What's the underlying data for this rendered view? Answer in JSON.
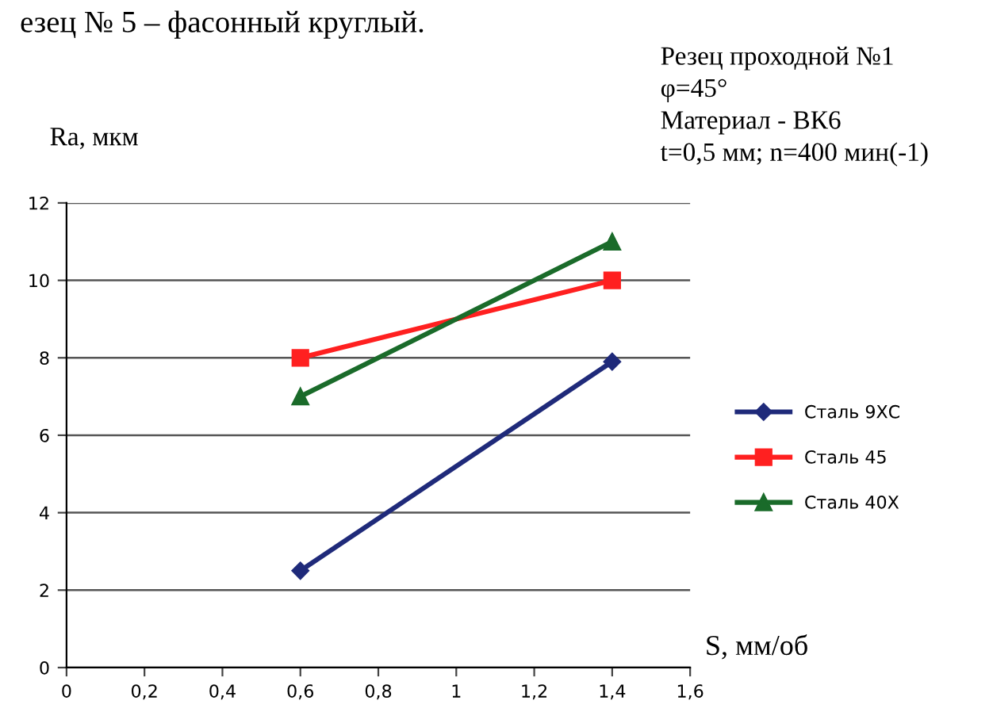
{
  "chart_data": {
    "type": "line",
    "xlabel": "S, мм/об",
    "ylabel": "Ra, мкм",
    "annotations": [
      "езец № 5 – фасонный круглый.",
      "Резец проходной №1",
      "φ=45°",
      "Материал - ВК6",
      "t=0,5 мм; n=400 мин(-1)"
    ],
    "x": [
      0.6,
      1.4
    ],
    "series": [
      {
        "name": "Сталь 9ХС",
        "color": "#1f2a7a",
        "marker": "diamond",
        "values": [
          2.5,
          7.9
        ]
      },
      {
        "name": "Сталь 45",
        "color": "#ff2020",
        "marker": "square",
        "values": [
          8,
          10
        ]
      },
      {
        "name": "Сталь 40Х",
        "color": "#1a6b2a",
        "marker": "triangle",
        "values": [
          7,
          11
        ]
      }
    ],
    "xlim": [
      0,
      1.6
    ],
    "ylim": [
      0,
      12
    ],
    "xticks": [
      0,
      {
        "value": 0.2,
        "label": "0,2"
      },
      {
        "value": 0.4,
        "label": "0,4"
      },
      {
        "value": 0.6,
        "label": "0,6"
      },
      {
        "value": 0.8,
        "label": "0,8"
      },
      1,
      {
        "value": 1.2,
        "label": "1,2"
      },
      {
        "value": 1.4,
        "label": "1,4"
      },
      {
        "value": 1.6,
        "label": "1,6"
      }
    ],
    "yticks": [
      0,
      2,
      4,
      6,
      8,
      10,
      12
    ],
    "grid": "y",
    "legend": "right",
    "line_style": "solid"
  }
}
